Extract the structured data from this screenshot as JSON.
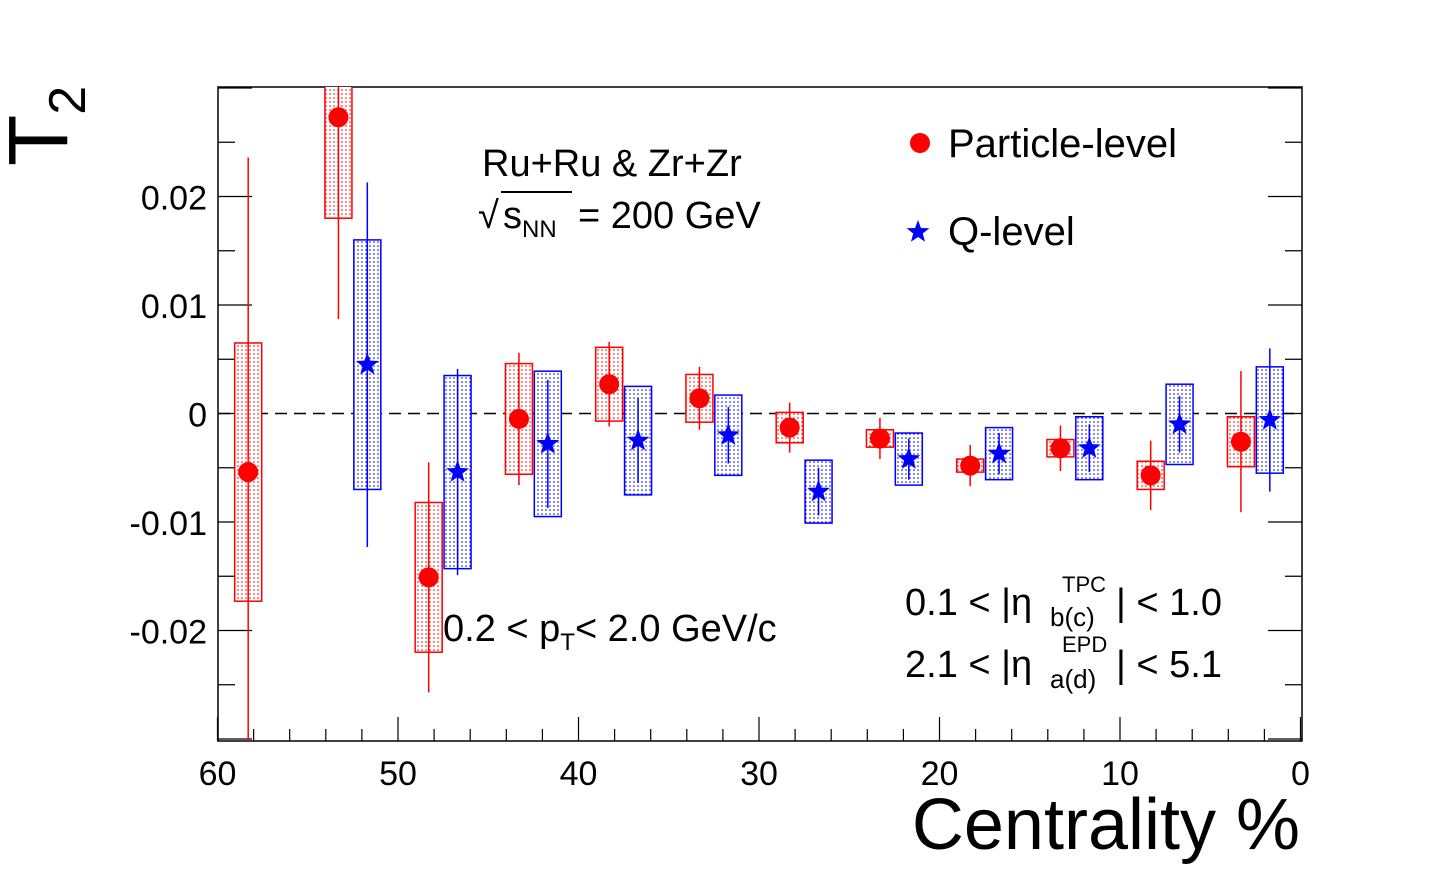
{
  "chart_data": {
    "type": "scatter",
    "xlabel": "Centrality %",
    "ylabel": {
      "main": "T",
      "sub": "2"
    },
    "xlim": [
      60,
      0
    ],
    "ylim": [
      -0.03,
      0.03
    ],
    "x_ticks": [
      60,
      50,
      40,
      30,
      20,
      10,
      0
    ],
    "x_tick_labels": [
      "60",
      "50",
      "40",
      "30",
      "20",
      "10",
      "0"
    ],
    "y_ticks": [
      0.02,
      0.01,
      0,
      -0.01,
      -0.02
    ],
    "y_tick_labels": [
      "0.02",
      "0.01",
      "0",
      "-0.01",
      "-0.02"
    ],
    "reference_line": 0,
    "grid": false,
    "legend_position": "top-right",
    "series": [
      {
        "name": "Particle-level",
        "marker": "circle",
        "color": "#ff0000",
        "x": [
          58.3,
          53.3,
          48.3,
          43.3,
          38.3,
          33.3,
          28.3,
          23.3,
          18.3,
          13.3,
          8.3,
          3.3
        ],
        "y": [
          -0.0054,
          0.0273,
          -0.0151,
          -0.0005,
          0.0027,
          0.0014,
          -0.0013,
          -0.0023,
          -0.0048,
          -0.0032,
          -0.0057,
          -0.0026
        ],
        "stat_err": [
          0.029,
          0.0186,
          0.0106,
          0.0061,
          0.0039,
          0.0029,
          0.0023,
          0.0019,
          0.0019,
          0.0021,
          0.0032,
          0.0065
        ],
        "sys_err": [
          0.0119,
          0.0093,
          0.0069,
          0.0051,
          0.0034,
          0.0022,
          0.0014,
          0.0008,
          0.0006,
          0.0008,
          0.0013,
          0.0023
        ]
      },
      {
        "name": "Q-level",
        "marker": "star",
        "color": "#0000ff",
        "x": [
          51.7,
          46.7,
          41.7,
          36.7,
          31.7,
          26.7,
          21.7,
          16.7,
          11.7,
          6.7,
          1.7
        ],
        "y": [
          0.0045,
          -0.0054,
          -0.0028,
          -0.0025,
          -0.002,
          -0.0072,
          -0.0042,
          -0.0037,
          -0.0032,
          -0.001,
          -0.0006
        ],
        "stat_err": [
          0.0168,
          0.0095,
          0.0059,
          0.0039,
          0.0026,
          0.0022,
          0.0019,
          0.0019,
          0.0022,
          0.0026,
          0.0066
        ],
        "sys_err": [
          0.0115,
          0.0089,
          0.0067,
          0.005,
          0.0037,
          0.0029,
          0.0024,
          0.0024,
          0.0029,
          0.0037,
          0.0049
        ]
      }
    ],
    "annotations": {
      "system": "Ru+Ru & Zr+Zr",
      "energy": {
        "sqrt": "√",
        "s": "s",
        "s_sub": "NN",
        "rest": "= 200 GeV"
      },
      "pt_cut": {
        "pre": "0.2 < p",
        "sub": "T",
        "post": "< 2.0 GeV/c"
      },
      "eta_tpc": {
        "pre": "0.1 < |η",
        "sup": "TPC",
        "sub": "b(c)",
        "post": "| < 1.0"
      },
      "eta_epd": {
        "pre": "2.1 < |η",
        "sup": "EPD",
        "sub": "a(d)",
        "post": "| < 5.1"
      }
    }
  }
}
